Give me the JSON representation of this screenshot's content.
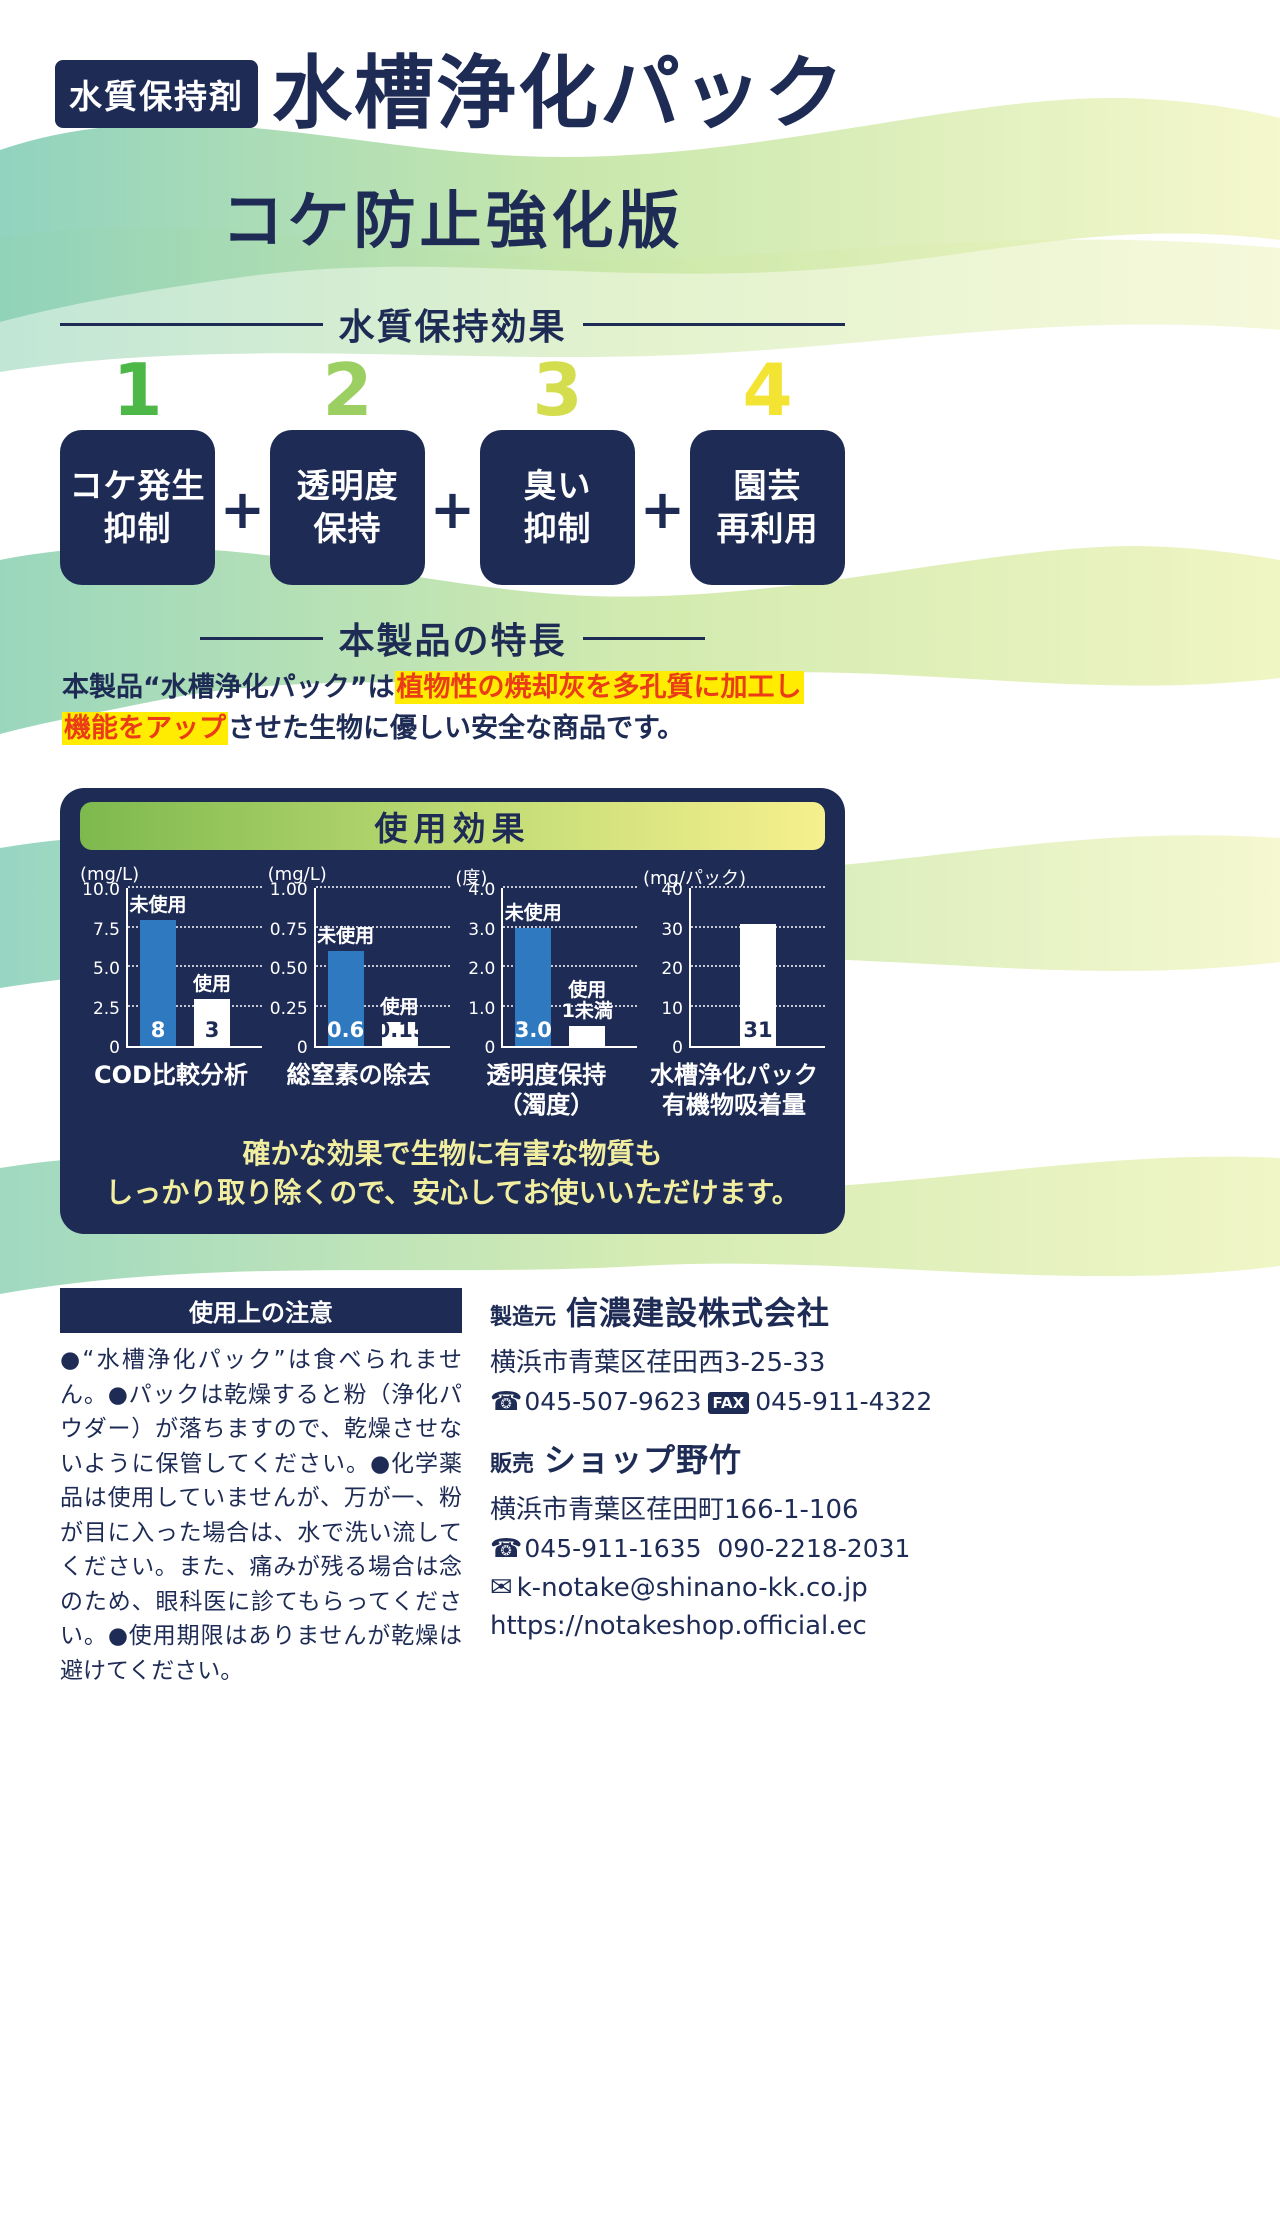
{
  "colors": {
    "navy": "#1e2b55",
    "red": "#ea3c16",
    "highlight_yellow": "#ffec00",
    "bar_blue": "#2e79c0",
    "panel_text_yellow": "#f1eea0"
  },
  "icons": {
    "phone": "☎",
    "email": "✉"
  },
  "header": {
    "badge": "水質保持剤",
    "title": "水槽浄化パック",
    "subtitle": "コケ防止強化版"
  },
  "effects_section": {
    "heading": "水質保持効果",
    "plus": "+",
    "items": [
      {
        "number": "1",
        "number_color": "#4db848",
        "label_line1": "コケ発生",
        "label_line2": "抑制"
      },
      {
        "number": "2",
        "number_color": "#9ccf62",
        "label_line1": "透明度",
        "label_line2": "保持"
      },
      {
        "number": "3",
        "number_color": "#d3dd4e",
        "label_line1": "臭い",
        "label_line2": "抑制"
      },
      {
        "number": "4",
        "number_color": "#f3e434",
        "label_line1": "園芸",
        "label_line2": "再利用"
      }
    ]
  },
  "features_section": {
    "heading": "本製品の特長",
    "text_before": "本製品“水槽浄化パック”は",
    "text_highlight1": "植物性の焼却灰を多孔質に加工し",
    "text_highlight2": "機能をアップ",
    "text_after": "させた生物に優しい安全な商品です。"
  },
  "results_panel": {
    "heading": "使用効果",
    "footer_line1": "確かな効果で生物に有害な物質も",
    "footer_line2": "しっかり取り除くので、安心してお使いいただけます。"
  },
  "chart_data": [
    {
      "type": "bar",
      "title_lines": [
        "COD比較分析"
      ],
      "unit": "(mg/L)",
      "ylim": [
        0,
        10
      ],
      "yticks": [
        "10.0",
        "7.5",
        "5.0",
        "2.5",
        "0"
      ],
      "bars": [
        {
          "label": "未使用",
          "value": 8,
          "display": "8",
          "color": "blue"
        },
        {
          "label": "使用",
          "value": 3,
          "display": "3",
          "color": "white"
        }
      ]
    },
    {
      "type": "bar",
      "title_lines": [
        "総窒素の除去"
      ],
      "unit": "(mg/L)",
      "ylim": [
        0,
        1.0
      ],
      "yticks": [
        "1.00",
        "0.75",
        "0.50",
        "0.25",
        "0"
      ],
      "bars": [
        {
          "label": "未使用",
          "value": 0.6,
          "display": "0.6",
          "color": "blue"
        },
        {
          "label": "使用",
          "value": 0.15,
          "display": "0.15",
          "color": "white"
        }
      ]
    },
    {
      "type": "bar",
      "title_lines": [
        "透明度保持",
        "（濁度）"
      ],
      "unit": "(度)",
      "ylim": [
        0,
        4.0
      ],
      "yticks": [
        "4.0",
        "3.0",
        "2.0",
        "1.0",
        "0"
      ],
      "bars": [
        {
          "label": "未使用",
          "value": 3.0,
          "display": "3.0",
          "color": "blue"
        },
        {
          "label": "使用",
          "label2": "1未満",
          "value": 0.5,
          "display": "",
          "color": "white"
        }
      ]
    },
    {
      "type": "bar",
      "title_lines": [
        "水槽浄化パック",
        "有機物吸着量"
      ],
      "unit": "(mg/パック)",
      "ylim": [
        0,
        40
      ],
      "yticks": [
        "40",
        "30",
        "20",
        "10",
        "0"
      ],
      "bars": [
        {
          "label": "",
          "value": 31,
          "display": "31",
          "color": "white"
        }
      ]
    }
  ],
  "caution": {
    "heading": "使用上の注意",
    "body": "●“水槽浄化パック”は食べられません。●パックは乾燥すると粉（浄化パウダー）が落ちますので、乾燥させないように保管してください。●化学薬品は使用していませんが、万が一、粉が目に入った場合は、水で洗い流してください。また、痛みが残る場合は念のため、眼科医に診てもらってください。●使用期限はありませんが乾燥は避けてください。"
  },
  "contact": {
    "maker_label": "製造元",
    "maker_name": "信濃建設株式会社",
    "maker_address": "横浜市青葉区荏田西3-25-33",
    "maker_tel": "045-507-9623",
    "fax_label": "FAX",
    "maker_fax": "045-911-4322",
    "seller_label": "販売",
    "seller_name": "ショップ野竹",
    "seller_address": "横浜市青葉区荏田町166-1-106",
    "seller_tel": "045-911-1635",
    "seller_tel2": "090-2218-2031",
    "email": "k-notake@shinano-kk.co.jp",
    "url": "https://notakeshop.official.ec"
  }
}
